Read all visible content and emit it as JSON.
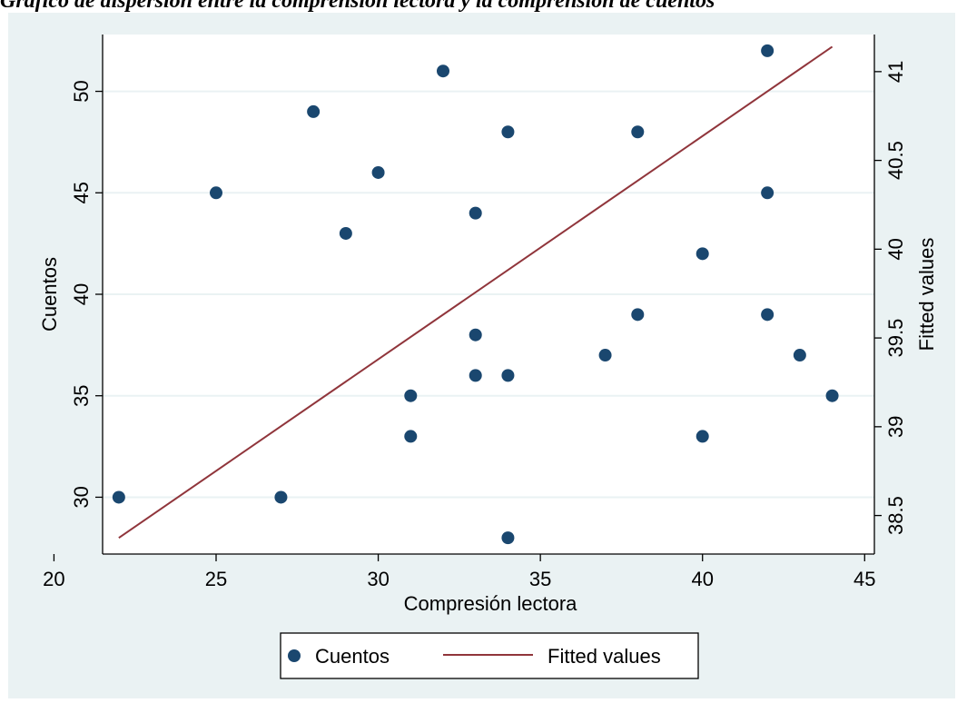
{
  "caption": "Gráfico de dispersión entre la comprensión lectora y la comprensión de cuentos",
  "colors": {
    "background": "#eaf2f3",
    "plot_area": "#ffffff",
    "gridline": "#eaf2f3",
    "markers": "#1a476f",
    "fit_line": "#90353b",
    "axis": "#000000"
  },
  "chart_data": {
    "type": "scatter",
    "xlabel": "Compresión lectora",
    "ylabel": "Cuentos",
    "y2label": "Fitted values",
    "xlim": [
      21.5,
      45.3
    ],
    "ylim": [
      27.2,
      52.8
    ],
    "y2lim": [
      38.283,
      41.209
    ],
    "xticks": [
      20,
      25,
      30,
      35,
      40,
      45
    ],
    "yticks": [
      30,
      35,
      40,
      45,
      50
    ],
    "y2ticks": [
      38.5,
      39,
      39.5,
      40,
      40.5,
      41
    ],
    "grid": true,
    "legend_position": "bottom",
    "series": [
      {
        "name": "Cuentos",
        "kind": "scatter",
        "axis": "left",
        "points": [
          [
            22,
            30
          ],
          [
            25,
            45
          ],
          [
            27,
            30
          ],
          [
            28,
            49
          ],
          [
            29,
            43
          ],
          [
            30,
            46
          ],
          [
            31,
            35
          ],
          [
            31,
            33
          ],
          [
            32,
            51
          ],
          [
            33,
            44
          ],
          [
            33,
            38
          ],
          [
            33,
            36
          ],
          [
            34,
            48
          ],
          [
            34,
            36
          ],
          [
            34,
            28
          ],
          [
            37,
            37
          ],
          [
            38,
            48
          ],
          [
            38,
            39
          ],
          [
            40,
            42
          ],
          [
            40,
            33
          ],
          [
            42,
            52
          ],
          [
            42,
            45
          ],
          [
            42,
            39
          ],
          [
            43,
            37
          ],
          [
            44,
            35
          ]
        ]
      },
      {
        "name": "Fitted values",
        "kind": "line",
        "axis": "right",
        "points": [
          [
            22,
            38.374
          ],
          [
            44,
            41.14
          ]
        ]
      }
    ]
  }
}
